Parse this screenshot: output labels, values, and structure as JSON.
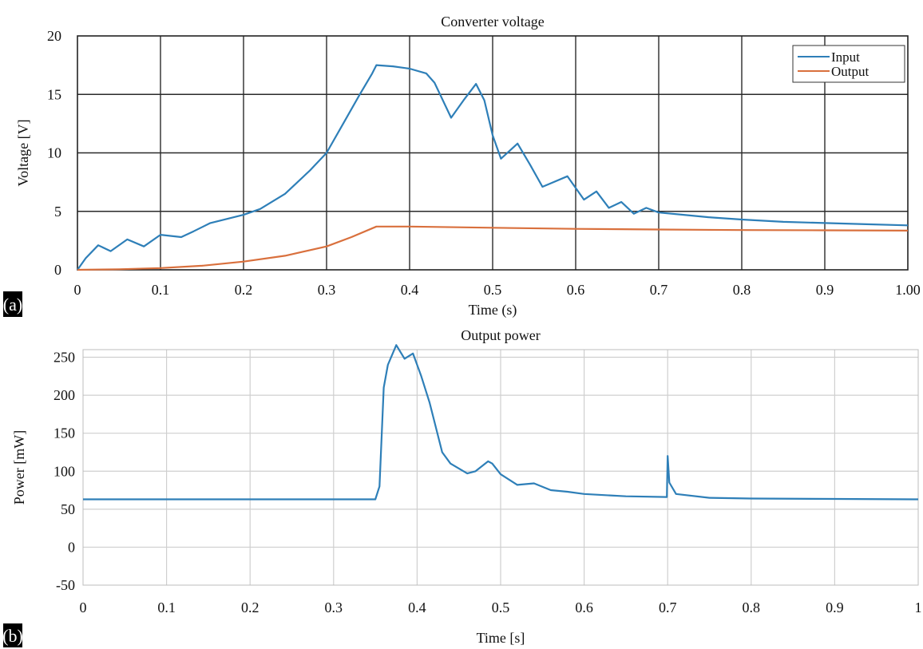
{
  "panels": {
    "a_label": "(a)",
    "b_label": "(b)"
  },
  "chart_data": [
    {
      "type": "line",
      "title": "Converter voltage",
      "xlabel": "Time (s)",
      "ylabel": "Voltage [V]",
      "xlim": [
        0,
        1.0
      ],
      "ylim": [
        0,
        20
      ],
      "x_ticks": [
        "0",
        "0.1",
        "0.2",
        "0.3",
        "0.4",
        "0.5",
        "0.6",
        "0.7",
        "0.8",
        "0.9",
        "1.00"
      ],
      "y_ticks": [
        "0",
        "5",
        "10",
        "15",
        "20"
      ],
      "grid": true,
      "legend_position": "top-right",
      "series": [
        {
          "name": "Input",
          "color": "#2e7fb8",
          "x": [
            0,
            0.01,
            0.025,
            0.04,
            0.06,
            0.08,
            0.1,
            0.125,
            0.14,
            0.16,
            0.2,
            0.22,
            0.25,
            0.28,
            0.3,
            0.32,
            0.34,
            0.355,
            0.36,
            0.38,
            0.4,
            0.42,
            0.43,
            0.45,
            0.465,
            0.48,
            0.49,
            0.5,
            0.51,
            0.53,
            0.545,
            0.56,
            0.57,
            0.59,
            0.61,
            0.625,
            0.64,
            0.655,
            0.67,
            0.685,
            0.7,
            0.73,
            0.76,
            0.8,
            0.85,
            0.9,
            0.95,
            1.0
          ],
          "y": [
            0,
            1.0,
            2.1,
            1.6,
            2.6,
            2.0,
            3.0,
            2.8,
            3.3,
            4.0,
            4.7,
            5.2,
            6.5,
            8.5,
            10.0,
            12.5,
            15.0,
            16.8,
            17.5,
            17.4,
            17.2,
            16.8,
            16.0,
            13.0,
            14.5,
            15.9,
            14.5,
            11.5,
            9.5,
            10.8,
            9.0,
            7.1,
            7.4,
            8.0,
            6.0,
            6.7,
            5.3,
            5.8,
            4.8,
            5.3,
            4.9,
            4.7,
            4.5,
            4.3,
            4.1,
            4.0,
            3.9,
            3.8
          ]
        },
        {
          "name": "Output",
          "color": "#d9703d",
          "x": [
            0,
            0.05,
            0.1,
            0.15,
            0.2,
            0.25,
            0.3,
            0.33,
            0.36,
            0.4,
            0.5,
            0.6,
            0.7,
            0.8,
            0.9,
            1.0
          ],
          "y": [
            0,
            0.05,
            0.15,
            0.35,
            0.7,
            1.2,
            2.0,
            2.8,
            3.7,
            3.7,
            3.6,
            3.5,
            3.45,
            3.4,
            3.38,
            3.35
          ]
        }
      ]
    },
    {
      "type": "line",
      "title": "Output power",
      "xlabel": "Time [s]",
      "ylabel": "Power [mW]",
      "xlim": [
        0,
        1
      ],
      "ylim": [
        -50,
        260
      ],
      "x_ticks": [
        "0",
        "0.1",
        "0.2",
        "0.3",
        "0.4",
        "0.5",
        "0.6",
        "0.7",
        "0.8",
        "0.9",
        "1"
      ],
      "y_ticks": [
        "-50",
        "0",
        "50",
        "100",
        "150",
        "200",
        "250"
      ],
      "grid": true,
      "series": [
        {
          "color": "#2e7fb8",
          "x": [
            0,
            0.1,
            0.2,
            0.3,
            0.35,
            0.355,
            0.36,
            0.365,
            0.375,
            0.385,
            0.395,
            0.405,
            0.415,
            0.43,
            0.44,
            0.46,
            0.47,
            0.485,
            0.49,
            0.5,
            0.52,
            0.54,
            0.56,
            0.58,
            0.6,
            0.65,
            0.699,
            0.7,
            0.702,
            0.71,
            0.75,
            0.8,
            0.9,
            1.0
          ],
          "y": [
            63,
            63,
            63,
            63,
            63,
            80,
            210,
            240,
            266,
            248,
            255,
            225,
            190,
            125,
            110,
            97,
            100,
            113,
            110,
            96,
            82,
            84,
            75,
            73,
            70,
            67,
            66,
            120,
            85,
            70,
            65,
            64,
            63.5,
            63
          ]
        }
      ]
    }
  ]
}
